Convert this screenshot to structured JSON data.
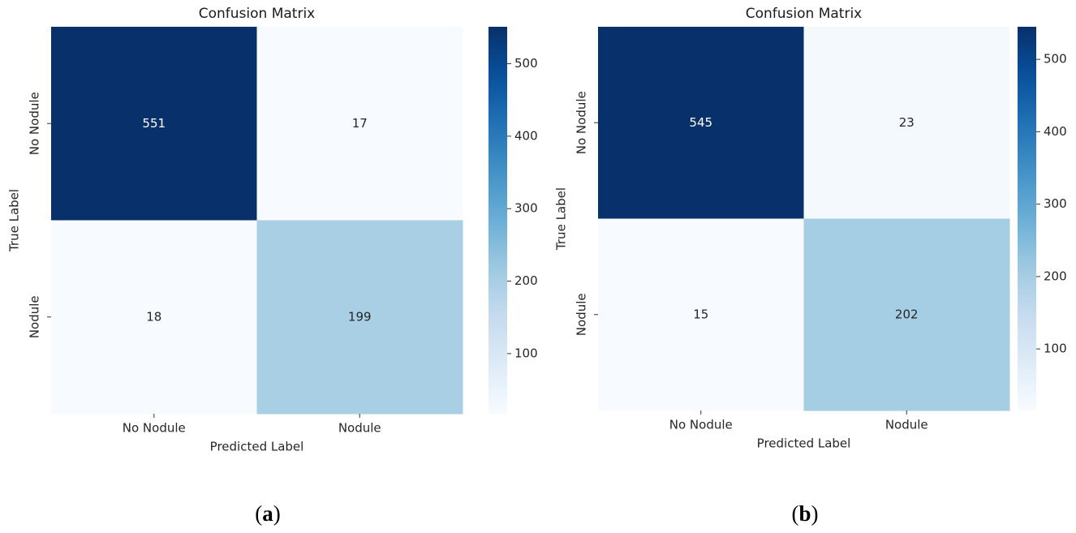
{
  "chart_data": [
    {
      "type": "heatmap",
      "title": "Confusion Matrix",
      "xlabel": "Predicted Label",
      "ylabel": "True Label",
      "x_categories": [
        "No Nodule",
        "Nodule"
      ],
      "y_categories": [
        "No Nodule",
        "Nodule"
      ],
      "values": [
        [
          551,
          17
        ],
        [
          18,
          199
        ]
      ],
      "colormap": "Blues",
      "vmin": 17,
      "vmax": 551,
      "colorbar_ticks": [
        100,
        200,
        300,
        400,
        500
      ],
      "caption_letter": "a"
    },
    {
      "type": "heatmap",
      "title": "Confusion Matrix",
      "xlabel": "Predicted Label",
      "ylabel": "True Label",
      "x_categories": [
        "No Nodule",
        "Nodule"
      ],
      "y_categories": [
        "No Nodule",
        "Nodule"
      ],
      "values": [
        [
          545,
          23
        ],
        [
          15,
          202
        ]
      ],
      "colormap": "Blues",
      "vmin": 15,
      "vmax": 545,
      "colorbar_ticks": [
        100,
        200,
        300,
        400,
        500
      ],
      "caption_letter": "b"
    }
  ]
}
